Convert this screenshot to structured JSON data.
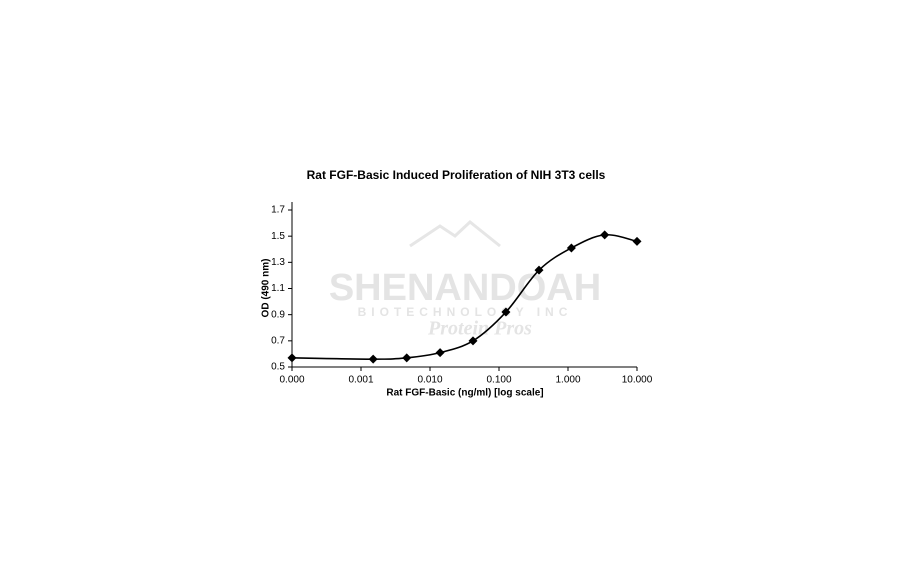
{
  "chart_data": {
    "type": "line",
    "title": "Rat FGF-Basic Induced Proliferation of NIH 3T3 cells",
    "x_label": "Rat FGF-Basic (ng/ml) [log scale]",
    "y_label": "OD (490 nm)",
    "x": [
      0.0001,
      0.0015,
      0.0046,
      0.014,
      0.042,
      0.126,
      0.38,
      1.12,
      3.4,
      10
    ],
    "series": [
      {
        "name": "OD",
        "color": "#000000",
        "values": [
          0.57,
          0.56,
          0.57,
          0.61,
          0.7,
          0.92,
          1.24,
          1.41,
          1.51,
          1.46
        ]
      }
    ],
    "xscale": "log",
    "xlim": [
      0.0001,
      10
    ],
    "xticks": [
      {
        "value": 0.0001,
        "label": "0.000"
      },
      {
        "value": 0.001,
        "label": "0.001"
      },
      {
        "value": 0.01,
        "label": "0.010"
      },
      {
        "value": 0.1,
        "label": "0.100"
      },
      {
        "value": 1,
        "label": "1.000"
      },
      {
        "value": 10,
        "label": "10.000"
      }
    ],
    "ylim": [
      0.5,
      1.7
    ],
    "yticks": [
      0.5,
      0.7,
      0.9,
      1.1,
      1.3,
      1.5,
      1.7
    ],
    "grid": false,
    "smooth": true
  },
  "watermark": {
    "name": "SHENANDOAH",
    "subtitle": "BIOTECHNOLOGY INC",
    "tagline": "Protein Pros"
  }
}
